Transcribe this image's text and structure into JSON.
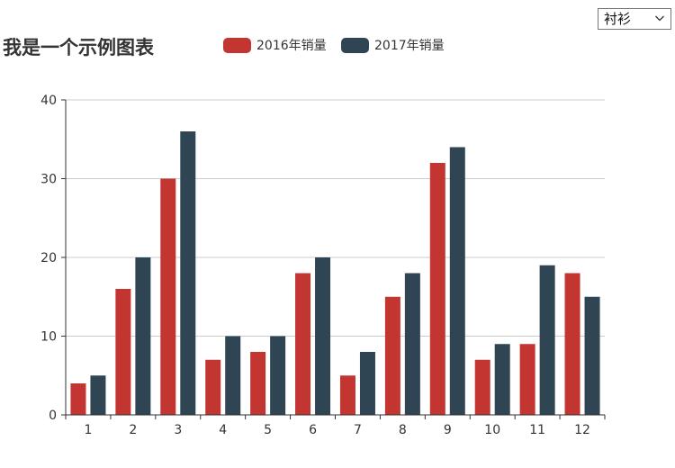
{
  "selector": {
    "value": "衬衫"
  },
  "chart_data": {
    "type": "bar",
    "title": "我是一个示例图表",
    "categories": [
      "1",
      "2",
      "3",
      "4",
      "5",
      "6",
      "7",
      "8",
      "9",
      "10",
      "11",
      "12"
    ],
    "series": [
      {
        "name": "2016年销量",
        "color": "#c23531",
        "values": [
          4,
          16,
          30,
          7,
          8,
          18,
          5,
          15,
          32,
          7,
          9,
          18
        ]
      },
      {
        "name": "2017年销量",
        "color": "#2f4554",
        "values": [
          5,
          20,
          36,
          10,
          10,
          20,
          8,
          18,
          34,
          9,
          19,
          15
        ]
      }
    ],
    "ylim": [
      0,
      40
    ],
    "yticks": [
      "0",
      "10",
      "20",
      "30",
      "40"
    ],
    "grid": "horizontal",
    "legend_position": "top"
  }
}
